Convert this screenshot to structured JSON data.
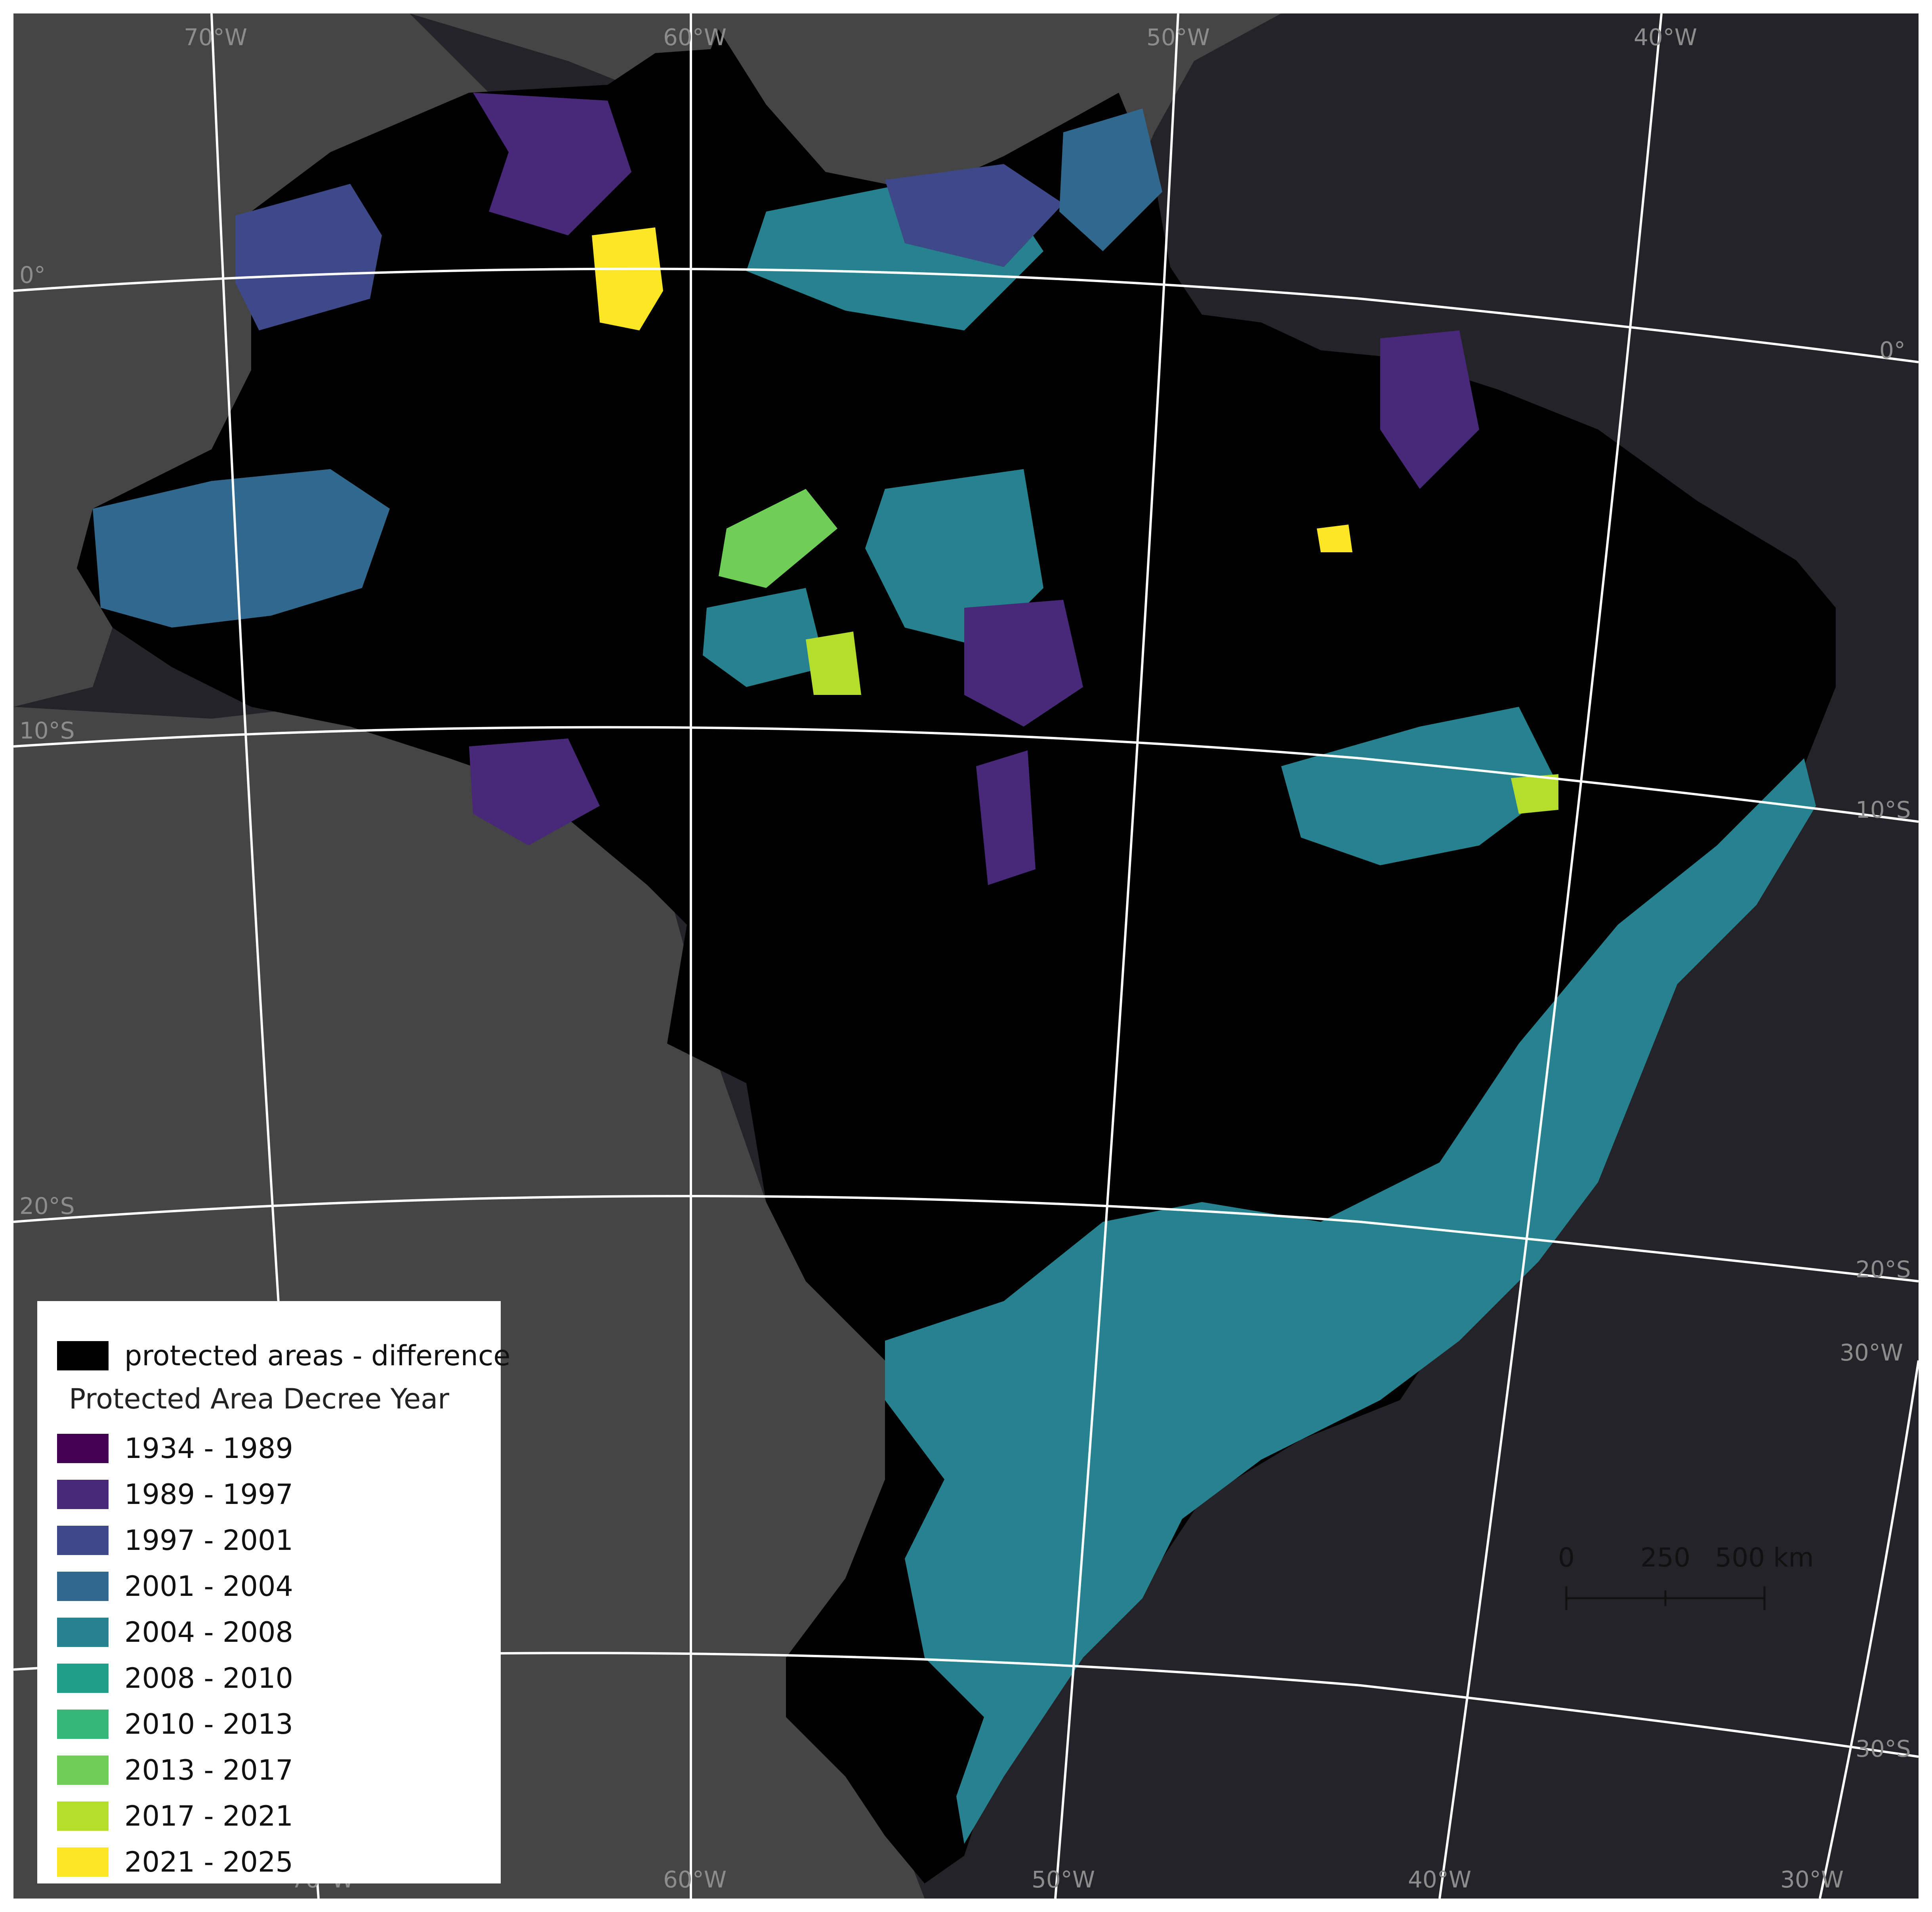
{
  "graticule": {
    "top_lon_labels": [
      "70°W",
      "60°W",
      "50°W",
      "40°W"
    ],
    "bottom_lon_labels": [
      "70°W",
      "60°W",
      "50°W",
      "40°W",
      "30°W"
    ],
    "left_lat_labels": [
      "0°",
      "10°S",
      "20°S"
    ],
    "right_lat_labels": [
      "0°",
      "10°S",
      "20°S",
      "30°S"
    ],
    "right_lon_label": "30°W"
  },
  "legend": {
    "difference_label": "protected areas - difference",
    "title": "Protected Area Decree Year",
    "items": [
      {
        "label": "1934 - 1989",
        "color": "#440154"
      },
      {
        "label": "1989 - 1997",
        "color": "#482878"
      },
      {
        "label": "1997 - 2001",
        "color": "#3e4989"
      },
      {
        "label": "2001 - 2004",
        "color": "#31688e"
      },
      {
        "label": "2004 - 2008",
        "color": "#26828e"
      },
      {
        "label": "2008 - 2010",
        "color": "#1f9e89"
      },
      {
        "label": "2010 - 2013",
        "color": "#35b779"
      },
      {
        "label": "2013 - 2017",
        "color": "#6ece58"
      },
      {
        "label": "2017 - 2021",
        "color": "#b5de2b"
      },
      {
        "label": "2021 - 2025",
        "color": "#fde725"
      }
    ]
  },
  "scalebar": {
    "labels": [
      "0",
      "250",
      "500 km"
    ]
  },
  "colors": {
    "ocean": "#24232a",
    "land": "#454545",
    "difference": "#000000",
    "graticule": "#ffffff"
  }
}
